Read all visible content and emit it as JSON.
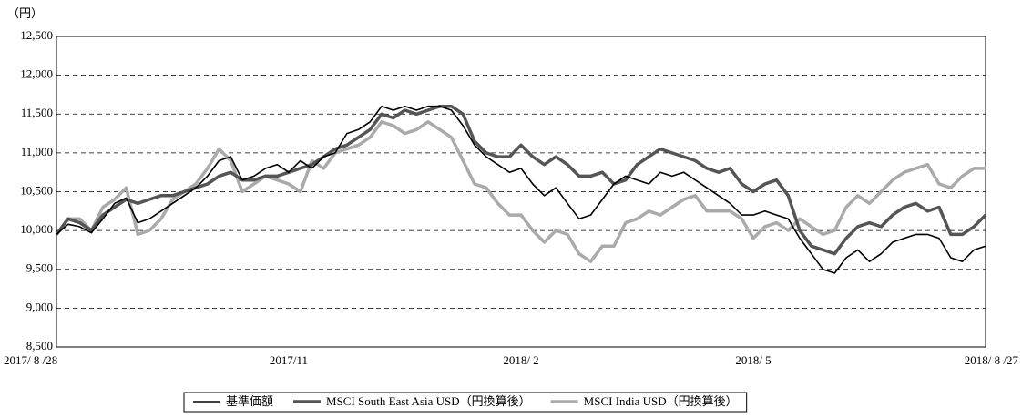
{
  "chart_data": {
    "type": "line",
    "y_unit_label": "（円）",
    "categories": [
      "2017/ 8 /28",
      null,
      null,
      null,
      null,
      null,
      null,
      null,
      null,
      null,
      null,
      null,
      null,
      null,
      null,
      null,
      null,
      null,
      null,
      null,
      "2017/11",
      null,
      null,
      null,
      null,
      null,
      null,
      null,
      null,
      null,
      null,
      null,
      null,
      null,
      null,
      null,
      null,
      null,
      null,
      null,
      "2018/ 2",
      null,
      null,
      null,
      null,
      null,
      null,
      null,
      null,
      null,
      null,
      null,
      null,
      null,
      null,
      null,
      null,
      null,
      null,
      null,
      "2018/ 5",
      null,
      null,
      null,
      null,
      null,
      null,
      null,
      null,
      null,
      null,
      null,
      null,
      null,
      null,
      null,
      null,
      null,
      null,
      null,
      "2018/ 8 /27"
    ],
    "series": [
      {
        "name": "基準価額",
        "color": "#000000",
        "values": [
          9950,
          10080,
          10050,
          9970,
          10150,
          10350,
          10420,
          10100,
          10150,
          10250,
          10350,
          10450,
          10550,
          10700,
          10900,
          10950,
          10650,
          10700,
          10800,
          10850,
          10750,
          10900,
          10800,
          10950,
          11000,
          11250,
          11300,
          11400,
          11600,
          11550,
          11600,
          11550,
          11600,
          11600,
          11550,
          11350,
          11100,
          10950,
          10850,
          10750,
          10800,
          10600,
          10450,
          10550,
          10350,
          10150,
          10200,
          10400,
          10600,
          10700,
          10650,
          10600,
          10750,
          10700,
          10750,
          10650,
          10550,
          10450,
          10350,
          10200,
          10200,
          10250,
          10200,
          10150,
          9900,
          9700,
          9500,
          9450,
          9650,
          9750,
          9600,
          9700,
          9850,
          9900,
          9950,
          9950,
          9900,
          9650,
          9600,
          9750,
          9800
        ]
      },
      {
        "name": "MSCI South East Asia USD（円換算後）",
        "color": "#555555",
        "values": [
          9950,
          10150,
          10100,
          10000,
          10200,
          10300,
          10400,
          10350,
          10400,
          10450,
          10450,
          10500,
          10550,
          10600,
          10700,
          10750,
          10650,
          10650,
          10700,
          10700,
          10750,
          10800,
          10850,
          10950,
          11050,
          11100,
          11200,
          11300,
          11500,
          11450,
          11550,
          11500,
          11550,
          11600,
          11600,
          11500,
          11150,
          11000,
          10950,
          10950,
          11100,
          10950,
          10850,
          10950,
          10850,
          10700,
          10700,
          10750,
          10600,
          10650,
          10850,
          10950,
          11050,
          11000,
          10950,
          10900,
          10800,
          10750,
          10800,
          10600,
          10500,
          10600,
          10650,
          10450,
          10000,
          9800,
          9750,
          9700,
          9900,
          10050,
          10100,
          10050,
          10200,
          10300,
          10350,
          10250,
          10300,
          9950,
          9950,
          10050,
          10200
        ]
      },
      {
        "name": "MSCI India USD（円換算後）",
        "color": "#aaaaaa",
        "values": [
          9950,
          10150,
          10150,
          10000,
          10300,
          10400,
          10550,
          9950,
          10000,
          10150,
          10400,
          10500,
          10600,
          10800,
          11050,
          10900,
          10500,
          10600,
          10700,
          10650,
          10600,
          10500,
          10900,
          10800,
          11000,
          11050,
          11100,
          11200,
          11400,
          11350,
          11250,
          11300,
          11400,
          11300,
          11200,
          10900,
          10600,
          10550,
          10350,
          10200,
          10200,
          10000,
          9850,
          10000,
          9950,
          9700,
          9600,
          9800,
          9800,
          10100,
          10150,
          10250,
          10200,
          10300,
          10400,
          10450,
          10250,
          10250,
          10250,
          10150,
          9900,
          10050,
          10100,
          10000,
          10150,
          10050,
          9950,
          10000,
          10300,
          10450,
          10350,
          10500,
          10650,
          10750,
          10800,
          10850,
          10600,
          10550,
          10700,
          10800,
          10800
        ]
      }
    ],
    "ylim": [
      8500,
      12500
    ],
    "yticks": [
      {
        "value": 8500,
        "label": "8,500"
      },
      {
        "value": 9000,
        "label": "9,000"
      },
      {
        "value": 9500,
        "label": "9,500"
      },
      {
        "value": 10000,
        "label": "10,000"
      },
      {
        "value": 10500,
        "label": "10,500"
      },
      {
        "value": 11000,
        "label": "11,000"
      },
      {
        "value": 11500,
        "label": "11,500"
      },
      {
        "value": 12000,
        "label": "12,000"
      },
      {
        "value": 12500,
        "label": "12,500"
      }
    ],
    "grid": true,
    "legend": "bottom"
  }
}
